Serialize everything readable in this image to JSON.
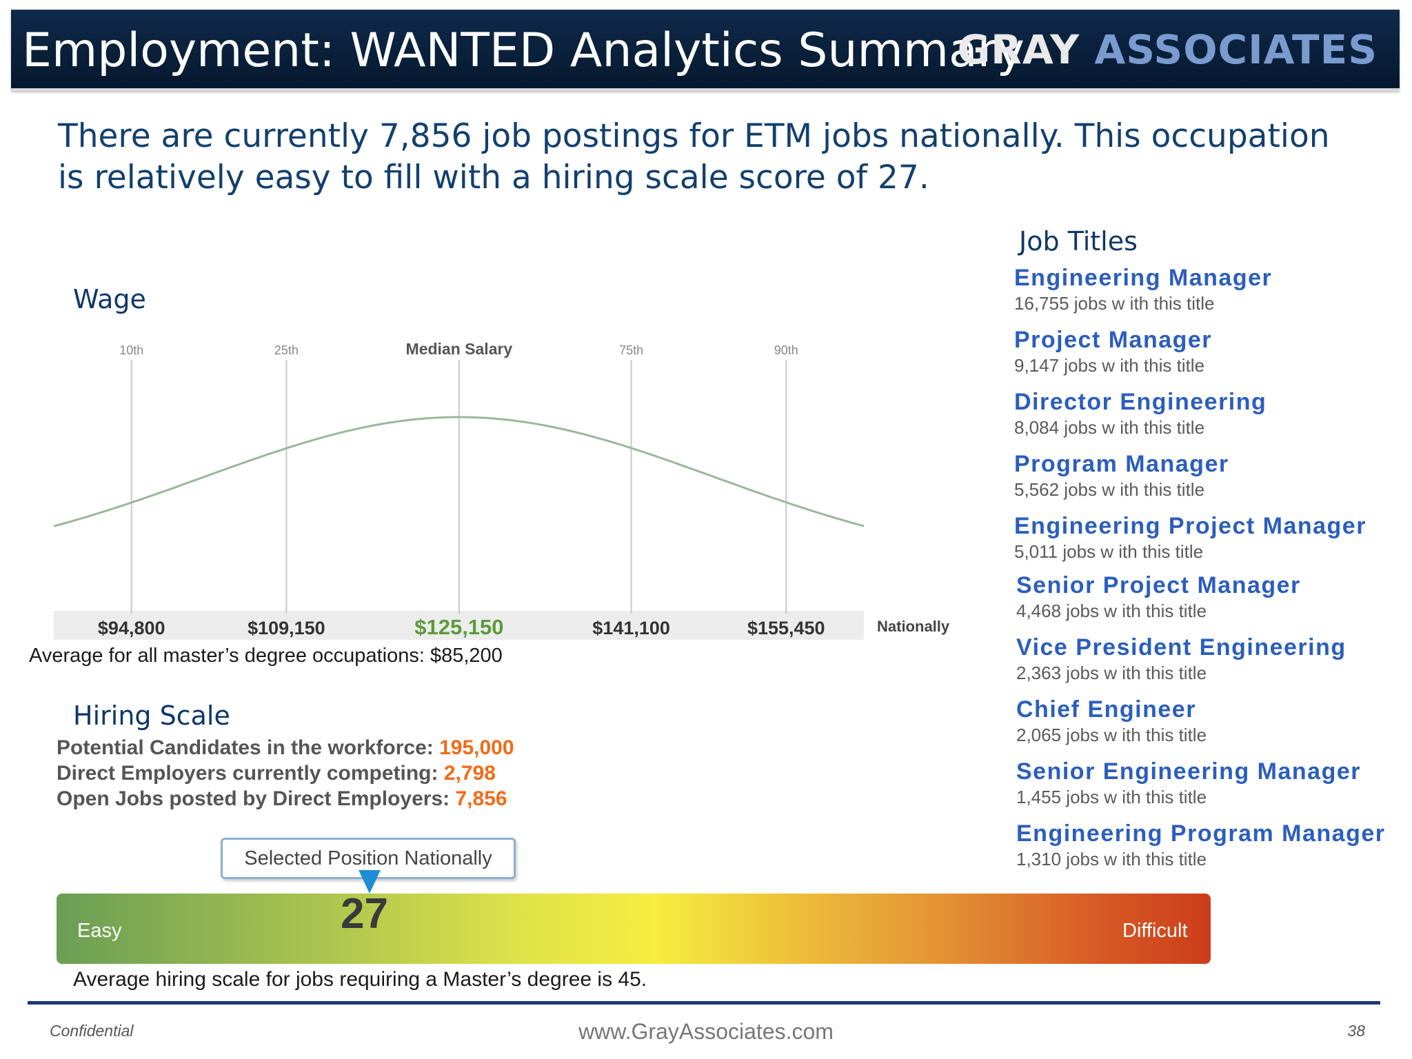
{
  "header": {
    "title": "Employment:  WANTED Analytics Summary",
    "logo_word1": "GRAY",
    "logo_word2": "ASSOCIATES"
  },
  "intro": "There are currently 7,856 job postings for ETM jobs nationally.  This occupation is relatively easy to fill with a hiring scale score of 27.",
  "wage": {
    "heading": "Wage",
    "nationally_label": "Nationally",
    "average_note": "Average for all master’s degree occupations:  $85,200"
  },
  "chart_data": {
    "type": "line",
    "title": "",
    "percentiles": [
      {
        "label": "10th",
        "value": 94800,
        "value_label": "$94,800"
      },
      {
        "label": "25th",
        "value": 109150,
        "value_label": "$109,150"
      },
      {
        "label": "Median Salary",
        "value": 125150,
        "value_label": "$125,150"
      },
      {
        "label": "75th",
        "value": 141100,
        "value_label": "$141,100"
      },
      {
        "label": "90th",
        "value": 155450,
        "value_label": "$155,450"
      }
    ],
    "xlim": [
      87600,
      162650
    ],
    "curve": "bell",
    "curve_color": "#9ab79a",
    "median_color": "#5b9a3a"
  },
  "hiring_scale": {
    "heading": "Hiring Scale",
    "stats": [
      {
        "label": "Potential Candidates in the workforce:",
        "value": "195,000"
      },
      {
        "label": "Direct Employers currently competing:",
        "value": "2,798"
      },
      {
        "label": "Open Jobs posted by Direct Employers:",
        "value": "7,856"
      }
    ],
    "callout": "Selected Position Nationally",
    "score": "27",
    "score_value": 27,
    "easy_label": "Easy",
    "difficult_label": "Difficult",
    "average_note": "Average hiring scale for jobs requiring a Master’s degree is 45."
  },
  "job_titles": {
    "heading": "Job Titles",
    "items": [
      {
        "title": "Engineering Manager",
        "count": "16,755 jobs w ith this title"
      },
      {
        "title": "Project Manager",
        "count": "9,147 jobs w ith this title"
      },
      {
        "title": "Director Engineering",
        "count": "8,084 jobs w ith this title"
      },
      {
        "title": "Program Manager",
        "count": "5,562 jobs w ith this title"
      },
      {
        "title": "Engineering Project Manager",
        "count": "5,011 jobs w ith this title"
      },
      {
        "title": "Senior Project Manager",
        "count": "4,468 jobs w ith this title"
      },
      {
        "title": "Vice President Engineering",
        "count": "2,363 jobs w ith this title"
      },
      {
        "title": "Chief Engineer",
        "count": "2,065 jobs w ith this title"
      },
      {
        "title": "Senior Engineering Manager",
        "count": "1,455 jobs w ith this title"
      },
      {
        "title": "Engineering Program Manager",
        "count": "1,310 jobs w ith this title"
      }
    ]
  },
  "footer": {
    "left": "Confidential",
    "center": "www.GrayAssociates.com",
    "page": "38"
  }
}
